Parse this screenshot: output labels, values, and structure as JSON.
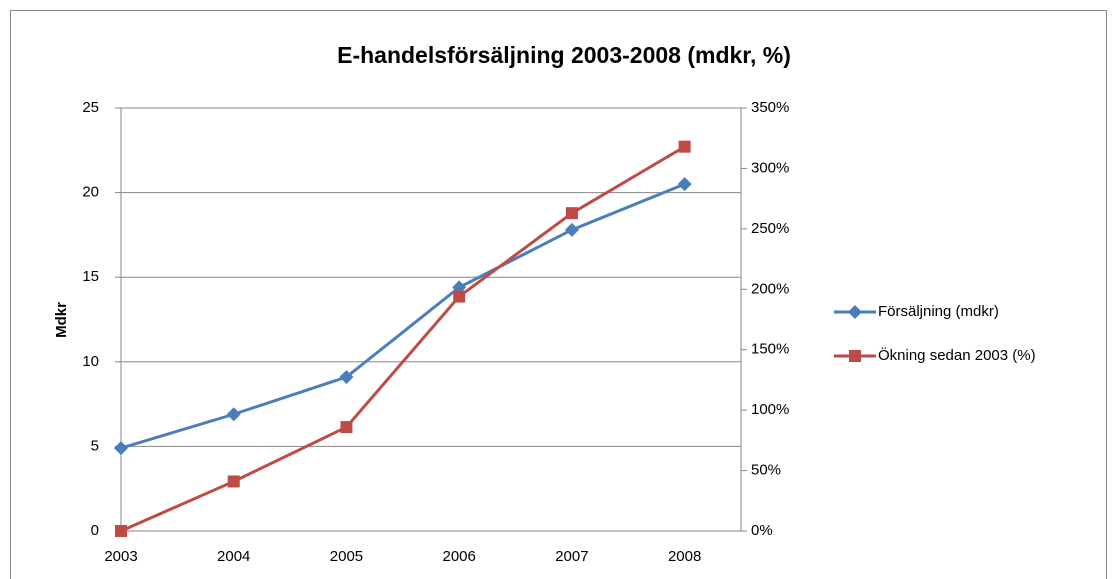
{
  "chart_data": {
    "type": "line",
    "title": "E-handelsförsäljning 2003-2008 (mdkr, %)",
    "y_label": "Mdkr",
    "categories": [
      "2003",
      "2004",
      "2005",
      "2006",
      "2007",
      "2008"
    ],
    "series": [
      {
        "name": "Försäljning  (mdkr)",
        "color": "#4a7ebb",
        "marker": "diamond",
        "values": [
          4.9,
          6.9,
          9.1,
          14.4,
          17.8,
          20.5
        ]
      },
      {
        "name": "Ökning sedan 2003 (%)",
        "color": "#be4b48",
        "marker": "square",
        "axis": "y2",
        "values": [
          0,
          41,
          86,
          194,
          263,
          318
        ]
      }
    ],
    "ylim": [
      0,
      25
    ],
    "yticks": [
      0,
      5,
      10,
      15,
      20,
      25
    ],
    "y2lim": [
      0,
      350
    ],
    "y2ticks": [
      {
        "value": 0,
        "label": "0%"
      },
      {
        "value": 50,
        "label": "50%"
      },
      {
        "value": 100,
        "label": "100%"
      },
      {
        "value": 150,
        "label": "150%"
      },
      {
        "value": 200,
        "label": "200%"
      },
      {
        "value": 250,
        "label": "250%"
      },
      {
        "value": 300,
        "label": "300%"
      },
      {
        "value": 350,
        "label": "350%"
      }
    ],
    "grid": true,
    "legend": "right"
  }
}
